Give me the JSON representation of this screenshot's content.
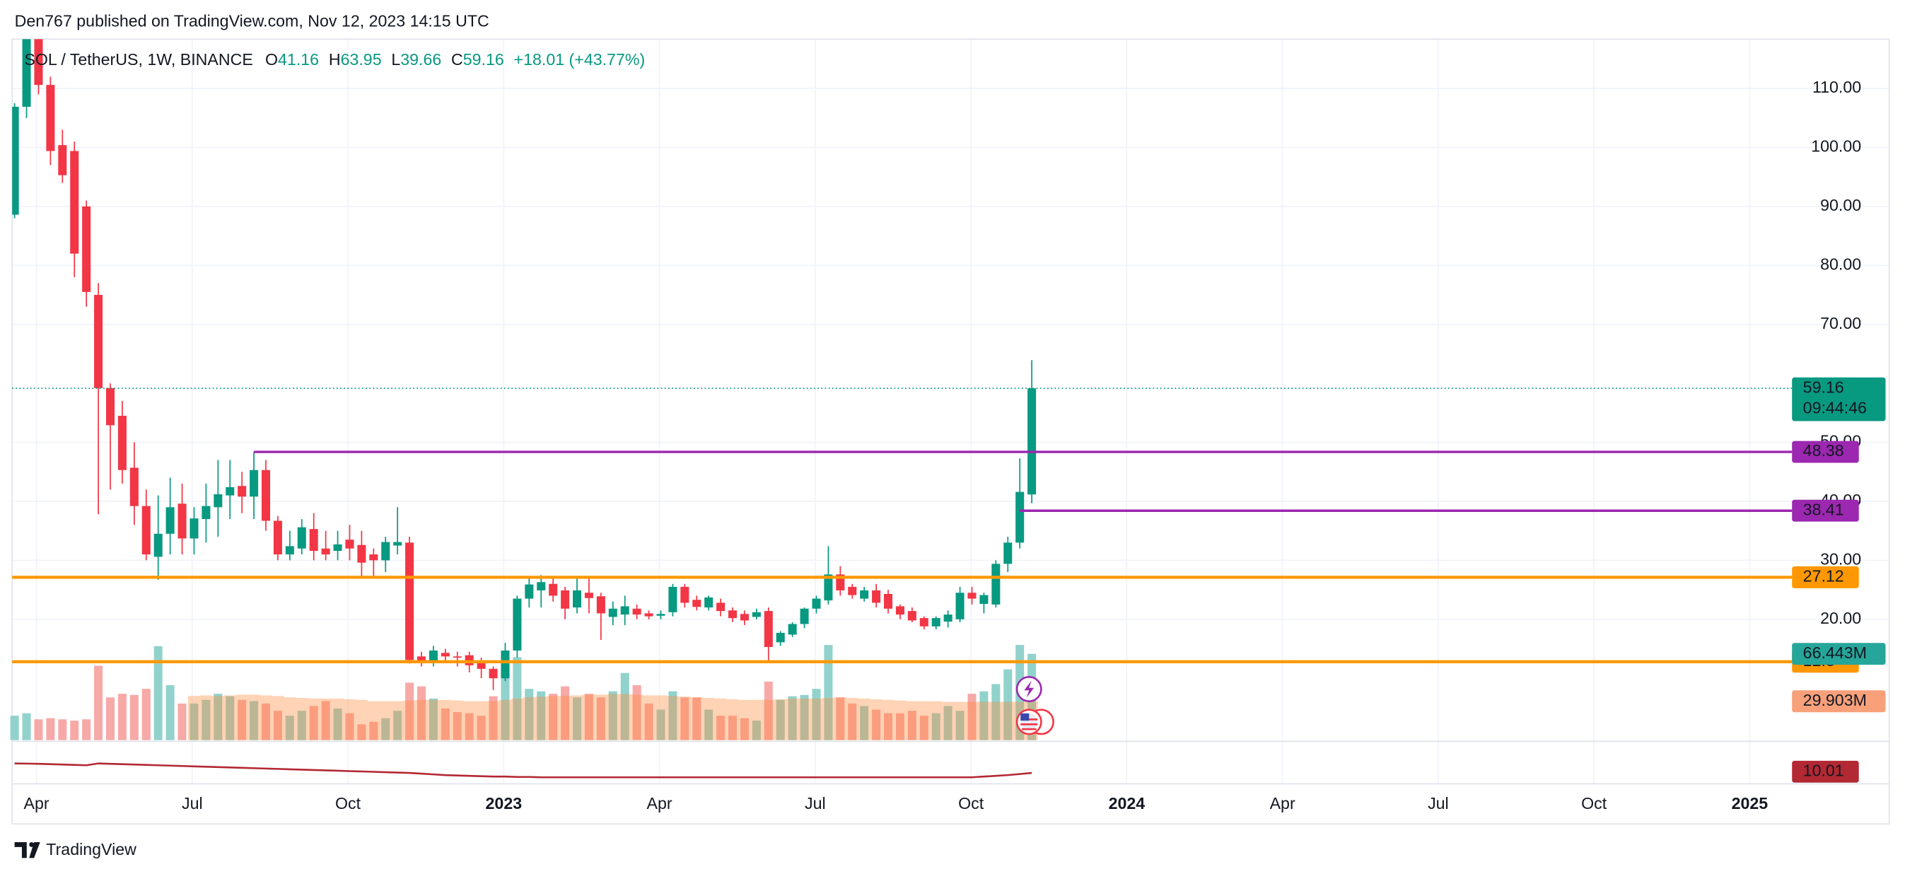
{
  "header": "Den767 published on TradingView.com, Nov 12, 2023 14:15 UTC",
  "footer": "TradingView",
  "chart_data": {
    "type": "candlestick",
    "title": "SOL / TetherUS, 1W, BINANCE",
    "legend_labels": {
      "open": "O",
      "high": "H",
      "low": "L",
      "close": "C"
    },
    "change_label": "+18.01 (+43.77%)",
    "up_color": "#089981",
    "down_color": "#f23645",
    "open": [
      88.6,
      106.9,
      118.5,
      110.6,
      100.4,
      99.4,
      90,
      75,
      59.2,
      54.5,
      45.7,
      39.2,
      30.6,
      34.5,
      39.6,
      33.7,
      37,
      39,
      41,
      42.6,
      40.8,
      45.3,
      36.7,
      31,
      32,
      35.3,
      32,
      31.6,
      33.5,
      32.6,
      31,
      30,
      32.5,
      33,
      13.7,
      12.7,
      14.3,
      13.7,
      13.9,
      13,
      11.6,
      10,
      14.7,
      23.5,
      24.9,
      26,
      24.9,
      22,
      24.5,
      23.9,
      20.4,
      20.8,
      21.8,
      21,
      20.6,
      21.2,
      25.5,
      23.3,
      22,
      22.8,
      21.5,
      20.9,
      20.4,
      21.4,
      16.1,
      17.4,
      19.2,
      21.8,
      23.2,
      27.6,
      25.5,
      23.5,
      24.9,
      24.3,
      22.2,
      21.4,
      20.2,
      18.8,
      19.6,
      20,
      24.5,
      22.6,
      22.5,
      29.4,
      33,
      41.16
    ],
    "high": [
      107.5,
      121,
      121,
      112,
      103,
      101,
      91,
      77,
      60,
      57,
      50,
      42,
      41,
      44,
      43,
      39,
      43,
      47,
      47,
      45,
      48.4,
      47,
      37.5,
      35,
      37,
      38,
      35,
      35,
      36,
      35,
      32,
      34,
      39,
      34,
      14.5,
      15.5,
      15,
      14.5,
      14.5,
      13.5,
      12,
      16,
      24,
      27,
      27.5,
      27,
      25.5,
      27,
      27,
      24.5,
      23,
      24,
      22.5,
      21.5,
      21.5,
      26,
      26,
      24,
      24,
      23.5,
      22,
      21.5,
      21.8,
      22,
      18,
      19.5,
      22,
      24,
      32.4,
      29,
      26,
      25.5,
      26,
      25,
      22.5,
      22,
      20.5,
      20.5,
      21.5,
      25.5,
      25.5,
      24.5,
      30,
      34,
      47.3,
      63.95
    ],
    "low": [
      88,
      105,
      109,
      97,
      94,
      78,
      73,
      37.8,
      42,
      43,
      36,
      30,
      26.7,
      31,
      31,
      31,
      33,
      34,
      37,
      38,
      37,
      35,
      30,
      30,
      31,
      30,
      30,
      30,
      30,
      27,
      27,
      28,
      31,
      12.5,
      12,
      12,
      13,
      12,
      11,
      10,
      8,
      9.5,
      13.5,
      22,
      22,
      23,
      20,
      21,
      21,
      16.5,
      19,
      19,
      20,
      20,
      20,
      20.5,
      22,
      21.5,
      21.5,
      20.5,
      19.5,
      19,
      20,
      13,
      15.5,
      17,
      18.5,
      21,
      22.5,
      24,
      23.5,
      23,
      22,
      21,
      20,
      19.5,
      18.3,
      18.3,
      18.6,
      19.5,
      22.5,
      21,
      22,
      28,
      32,
      39.66
    ],
    "close": [
      106.9,
      118.5,
      110.6,
      99.4,
      95.3,
      82,
      75.5,
      59.2,
      52.9,
      45.3,
      39.2,
      31,
      34.5,
      39,
      33.7,
      37.1,
      39.2,
      41.2,
      42.4,
      40.8,
      45.3,
      36.7,
      31,
      32.4,
      35.6,
      31.6,
      31,
      32.7,
      32,
      29.6,
      30,
      33.1,
      33.1,
      13.1,
      12.7,
      14.7,
      13.7,
      13.5,
      12.2,
      11.6,
      10,
      14.7,
      23.5,
      25.9,
      26.3,
      24,
      21.8,
      24.9,
      23.6,
      21,
      21.8,
      22.2,
      20.8,
      20.5,
      20.9,
      25.5,
      22.8,
      22.1,
      23.7,
      21.4,
      20.2,
      19.8,
      21.2,
      15.3,
      17.7,
      19.2,
      21.8,
      23.5,
      27.6,
      24.9,
      24.1,
      24.9,
      22.8,
      21.8,
      20.8,
      19.8,
      18.8,
      20.2,
      20.8,
      24.5,
      23.5,
      24.1,
      29.4,
      33,
      41.6,
      59.16
    ],
    "ylim": [
      -0.49,
      118.37
    ],
    "yticks": [
      {
        "value": 110,
        "label": "110.00"
      },
      {
        "value": 100,
        "label": "100.00"
      },
      {
        "value": 90,
        "label": "90.00"
      },
      {
        "value": 80,
        "label": "80.00"
      },
      {
        "value": 70,
        "label": "70.00"
      },
      {
        "value": 50,
        "label": "50.00"
      },
      {
        "value": 40,
        "label": "40.00"
      },
      {
        "value": 30,
        "label": "30.00"
      },
      {
        "value": 20,
        "label": "20.00"
      }
    ],
    "xticks": [
      "Apr",
      "Jul",
      "Oct",
      "2023",
      "Apr",
      "Jul",
      "Oct",
      "2024",
      "Apr",
      "Jul",
      "Oct",
      "2025"
    ],
    "last_price_countdown": "09:44:46",
    "levels": [
      {
        "value": 48.38,
        "color": "#9c27b0"
      },
      {
        "value": 38.41,
        "color": "#9c27b0"
      },
      {
        "value": 27.12,
        "color": "#ff9800"
      },
      {
        "value": 12.8,
        "color": "#ff9800"
      }
    ],
    "volume": [
      18.8,
      20.7,
      16,
      16.9,
      16,
      15,
      16,
      57.3,
      32.9,
      35.7,
      34.8,
      39.5,
      72.4,
      42.3,
      28.2,
      28.2,
      31,
      35.7,
      33.8,
      31,
      30.1,
      28.2,
      22.6,
      18.8,
      22.6,
      26.3,
      30.1,
      24.4,
      20.7,
      12.2,
      14.1,
      16.9,
      22.6,
      44.2,
      41.4,
      32,
      24.4,
      21.6,
      20.7,
      18.8,
      33.8,
      54.5,
      63.9,
      39.5,
      37.6,
      35.7,
      41.4,
      32.9,
      35.7,
      32.9,
      37.6,
      51.7,
      42.3,
      28.2,
      23.5,
      37.6,
      32.9,
      32.9,
      23.5,
      18.8,
      18.8,
      16.9,
      15,
      45.1,
      31,
      33.8,
      34.8,
      39.5,
      73.3,
      32.9,
      28.2,
      26.3,
      23.5,
      20.7,
      20.7,
      22.6,
      18.8,
      20.7,
      26.3,
      22.6,
      35.7,
      37.6,
      43.2,
      54.5,
      73.3,
      66.443
    ],
    "volume_ma": [
      null,
      null,
      null,
      null,
      null,
      null,
      null,
      null,
      null,
      null,
      null,
      null,
      null,
      null,
      null,
      34,
      34.5,
      34,
      34.5,
      35,
      35,
      34.5,
      34,
      33,
      32.5,
      32,
      32,
      32,
      31.5,
      31,
      30,
      30,
      30,
      30.5,
      31,
      31,
      31,
      30.5,
      30,
      30,
      30,
      31,
      32,
      33,
      33.5,
      34,
      34,
      34.5,
      35,
      35,
      35.5,
      35.5,
      35,
      34.5,
      34.5,
      34,
      33.5,
      33,
      32.5,
      32,
      31.5,
      31,
      31,
      31,
      31.5,
      32,
      32,
      32,
      32.5,
      33,
      32.5,
      32,
      31.5,
      31,
      30.5,
      30,
      30,
      30,
      29.5,
      29.5,
      29.5,
      29.5,
      29.5,
      29.5,
      29.5,
      29.903
    ],
    "volume_ylim": [
      0,
      540
    ],
    "volume_labels": [
      {
        "value": 66.443,
        "label": "66.443M"
      },
      {
        "value": 29.903,
        "label": "29.903M"
      }
    ],
    "indicator": {
      "color": "#b22833",
      "ylim": [
        0,
        50
      ],
      "values": [
        23,
        22.8,
        22.5,
        22,
        21.5,
        21,
        20.5,
        23,
        22.5,
        22,
        21.5,
        21,
        20.5,
        20,
        19.5,
        19,
        18.5,
        18,
        17.5,
        17,
        16.5,
        16,
        15.5,
        15,
        14.5,
        14,
        13.5,
        13,
        12.5,
        12,
        11.5,
        11,
        10.5,
        10,
        9,
        8,
        7,
        6.5,
        6,
        5.5,
        5,
        5,
        4.5,
        4.5,
        4,
        4,
        4,
        4,
        4,
        4,
        4,
        4,
        4,
        4,
        4,
        4,
        4,
        4,
        4,
        4,
        4,
        4,
        4,
        4,
        4,
        4,
        4,
        4,
        4,
        4,
        4,
        4,
        4,
        4,
        4,
        4,
        4,
        4,
        4,
        4,
        4,
        5,
        6,
        7,
        8.5,
        10.01
      ]
    }
  }
}
